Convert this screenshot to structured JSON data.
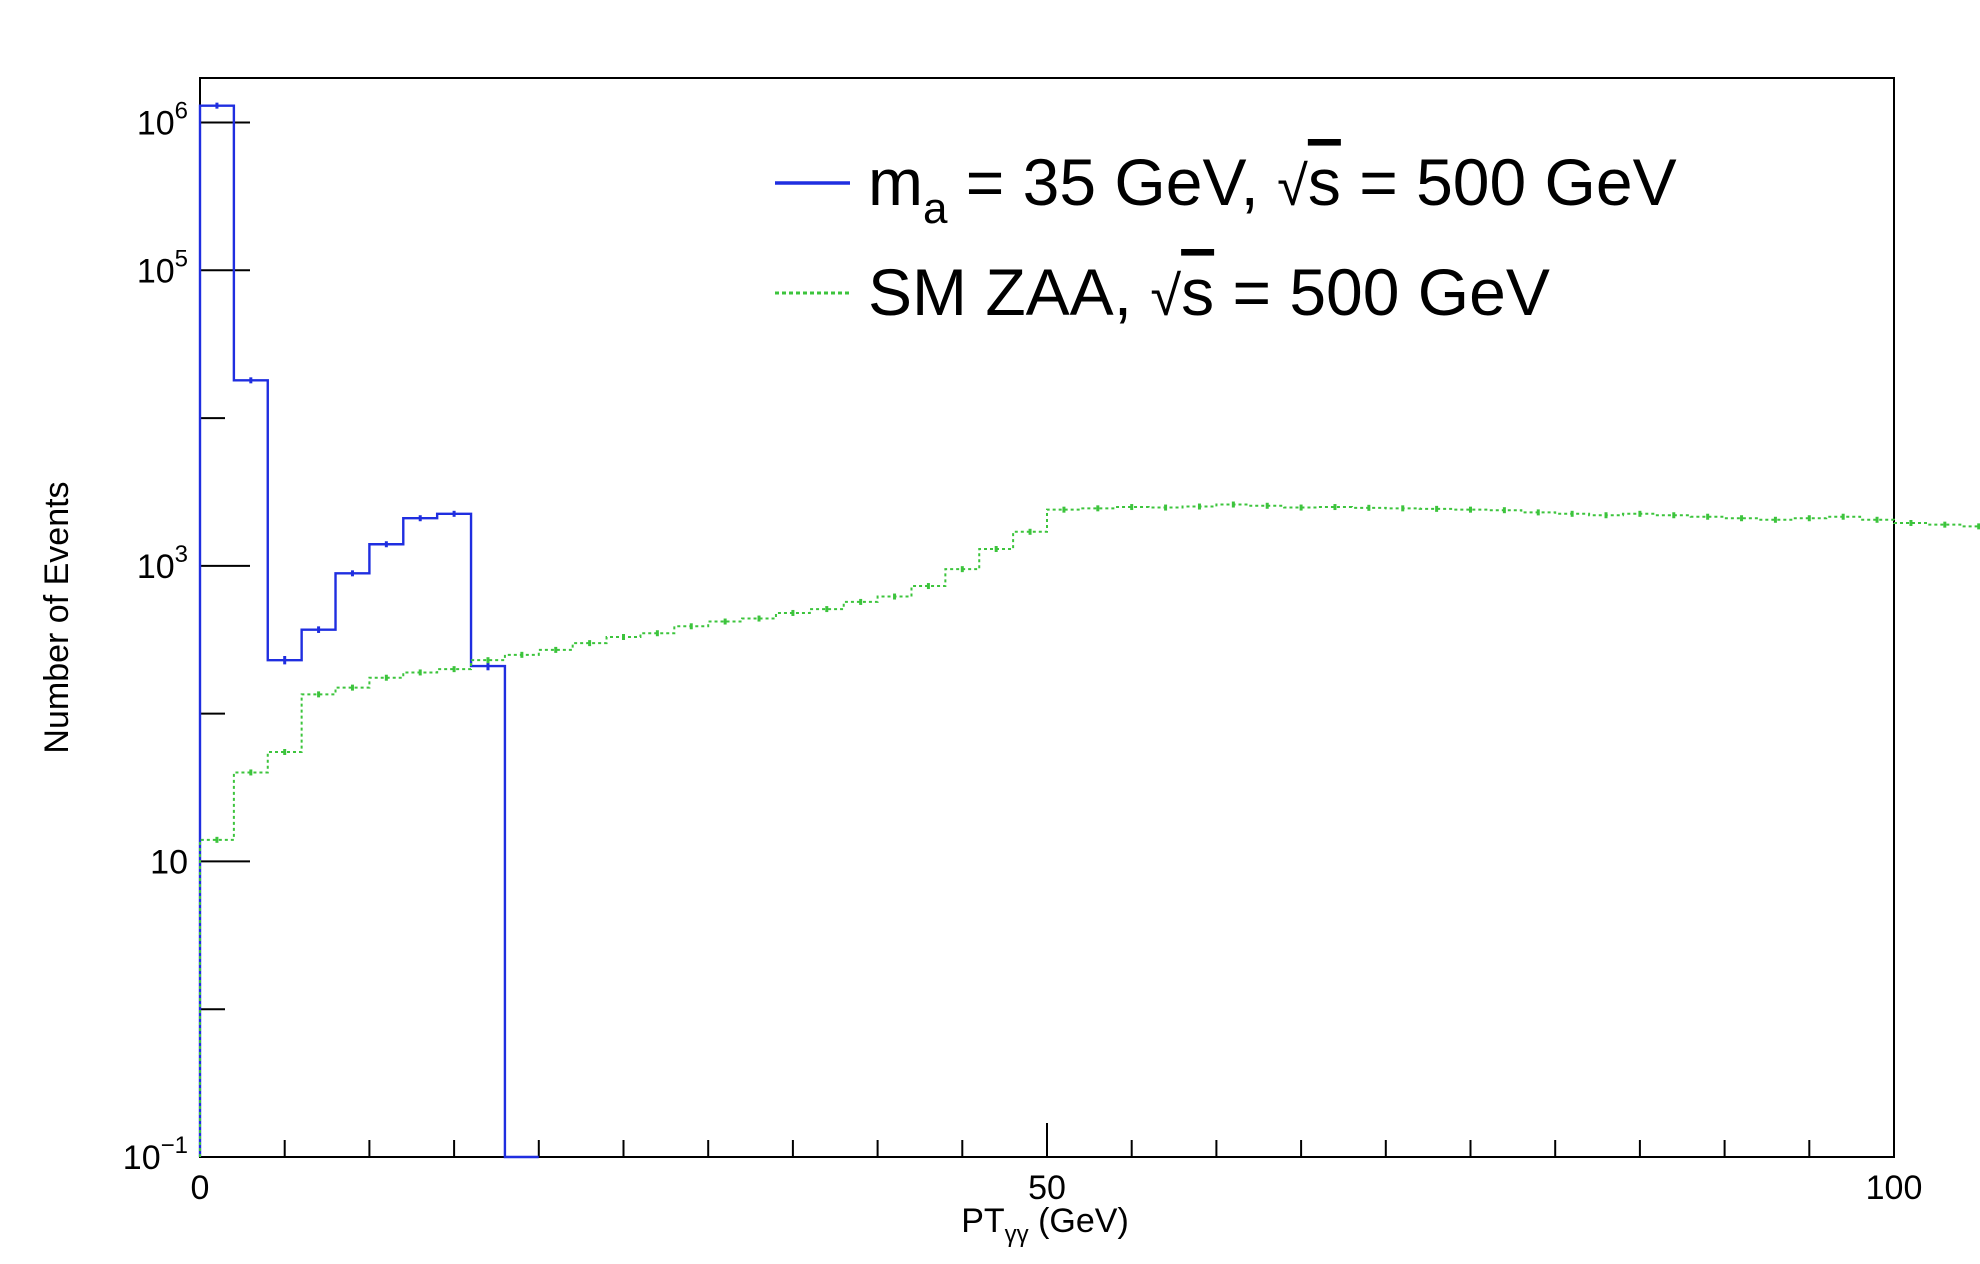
{
  "chart_data": {
    "type": "histogram",
    "scale": {
      "x": "linear",
      "y": "log"
    },
    "xlim": [
      0,
      100
    ],
    "ylim": [
      0.1,
      2000000
    ],
    "bin_width": 2,
    "xlabel": {
      "main": "PT",
      "sub": "γγ",
      "unit": " (GeV)"
    },
    "ylabel": "Number of Events",
    "x_ticks": [
      {
        "value": 0,
        "label": "0"
      },
      {
        "value": 50,
        "label": "50"
      },
      {
        "value": 100,
        "label": "100"
      }
    ],
    "y_ticks": [
      {
        "value": 0.1,
        "base": "10",
        "exp": "−1"
      },
      {
        "value": 10,
        "base": "10",
        "exp": ""
      },
      {
        "value": 1000,
        "base": "10",
        "exp": "3"
      },
      {
        "value": 100000,
        "base": "10",
        "exp": "5"
      },
      {
        "value": 1000000,
        "base": "10",
        "exp": "6"
      }
    ],
    "legend": {
      "position": "top-right"
    },
    "series": [
      {
        "key": "signal",
        "legend": {
          "pre": "m",
          "sub": "a",
          "post": " = 35 GeV,  ",
          "sqrt": "√",
          "sqrt_arg": "s",
          "tail": " = 500 GeV"
        },
        "color": "#1f2ee0",
        "style": "solid",
        "values": [
          1300000,
          18000,
          230,
          370,
          890,
          1400,
          2100,
          2250,
          210,
          0
        ],
        "errors": [
          1100,
          130,
          15,
          19,
          30,
          37,
          46,
          47,
          14,
          0
        ]
      },
      {
        "key": "background",
        "legend": {
          "pre": "SM ZAA,  ",
          "sub": "",
          "post": "",
          "sqrt": "√",
          "sqrt_arg": "s",
          "tail": " = 500 GeV"
        },
        "color": "#3cc43c",
        "style": "dotted",
        "values": [
          14,
          40,
          55,
          135,
          150,
          175,
          190,
          200,
          230,
          250,
          270,
          300,
          330,
          350,
          390,
          420,
          440,
          480,
          510,
          570,
          620,
          730,
          950,
          1300,
          1700,
          2400,
          2450,
          2500,
          2480,
          2520,
          2600,
          2550,
          2480,
          2500,
          2470,
          2450,
          2430,
          2400,
          2380,
          2300,
          2250,
          2200,
          2250,
          2200,
          2150,
          2100,
          2050,
          2100,
          2150,
          2050,
          1950,
          1900,
          1850,
          1900,
          1850,
          1800,
          1850,
          1800,
          1750,
          1700,
          1700
        ]
      }
    ]
  }
}
